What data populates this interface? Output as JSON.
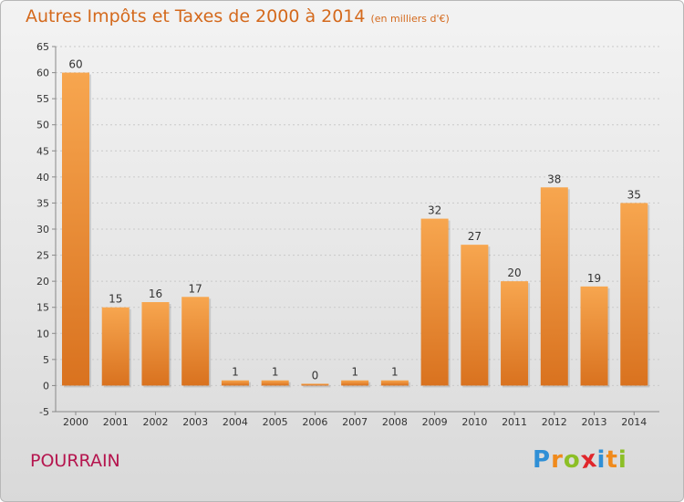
{
  "title": "Autres Impôts et Taxes de 2000 à 2014",
  "subtitle": "(en milliers d'€)",
  "city": "POURRAIN",
  "logo": {
    "letters": [
      "P",
      "r",
      "o",
      "x",
      "i",
      "t",
      "i"
    ],
    "colors": [
      "#2f8fd6",
      "#f08a1c",
      "#8cbf26",
      "#e0262b",
      "#2f8fd6",
      "#f08a1c",
      "#8cbf26"
    ]
  },
  "colors": {
    "bar_top": "#f7a64f",
    "bar_bottom": "#d9721f",
    "title": "#d4691c",
    "city": "#b5154e"
  },
  "chart_data": {
    "type": "bar",
    "title": "Autres Impôts et Taxes de 2000 à 2014",
    "subtitle": "(en milliers d'€)",
    "categories": [
      "2000",
      "2001",
      "2002",
      "2003",
      "2004",
      "2005",
      "2006",
      "2007",
      "2008",
      "2009",
      "2010",
      "2011",
      "2012",
      "2013",
      "2014"
    ],
    "values": [
      60,
      15,
      16,
      17,
      1,
      1,
      0,
      1,
      1,
      32,
      27,
      20,
      38,
      19,
      35
    ],
    "labels": [
      "60",
      "15",
      "16",
      "17",
      "1",
      "1",
      "0",
      "1",
      "1",
      "32",
      "27",
      "20",
      "38",
      "19",
      "35"
    ],
    "ylim": [
      -5,
      65
    ],
    "yticks": [
      -5,
      0,
      5,
      10,
      15,
      20,
      25,
      30,
      35,
      40,
      45,
      50,
      55,
      60,
      65
    ],
    "grid": true,
    "legend": "none"
  }
}
